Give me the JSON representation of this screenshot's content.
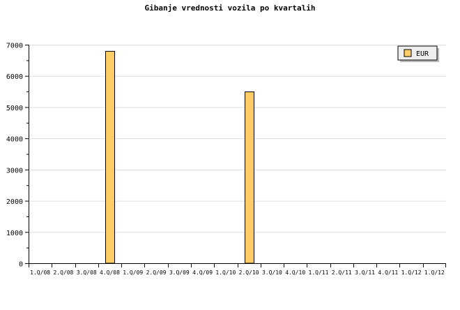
{
  "chart_data": {
    "type": "bar",
    "title": "Gibanje vrednosti vozila po kvartalih",
    "categories": [
      "1.Q/08",
      "2.Q/08",
      "3.Q/08",
      "4.Q/08",
      "1.Q/09",
      "2.Q/09",
      "3.Q/09",
      "4.Q/09",
      "1.Q/10",
      "2.Q/10",
      "3.Q/10",
      "4.Q/10",
      "1.Q/11",
      "2.Q/11",
      "3.Q/11",
      "4.Q/11",
      "1.Q/12",
      "1.Q/12"
    ],
    "series": [
      {
        "name": "EUR",
        "values": [
          0,
          0,
          0,
          6800,
          0,
          0,
          0,
          0,
          0,
          5500,
          0,
          0,
          0,
          0,
          0,
          0,
          0,
          0
        ],
        "color": "#ffcc66"
      }
    ],
    "ylim": [
      0,
      7000
    ],
    "yticks": [
      "0",
      "1000",
      "2000",
      "3000",
      "4000",
      "5000",
      "6000",
      "7000"
    ],
    "grid": true,
    "legend": "top-right",
    "xlabel": "",
    "ylabel": ""
  }
}
